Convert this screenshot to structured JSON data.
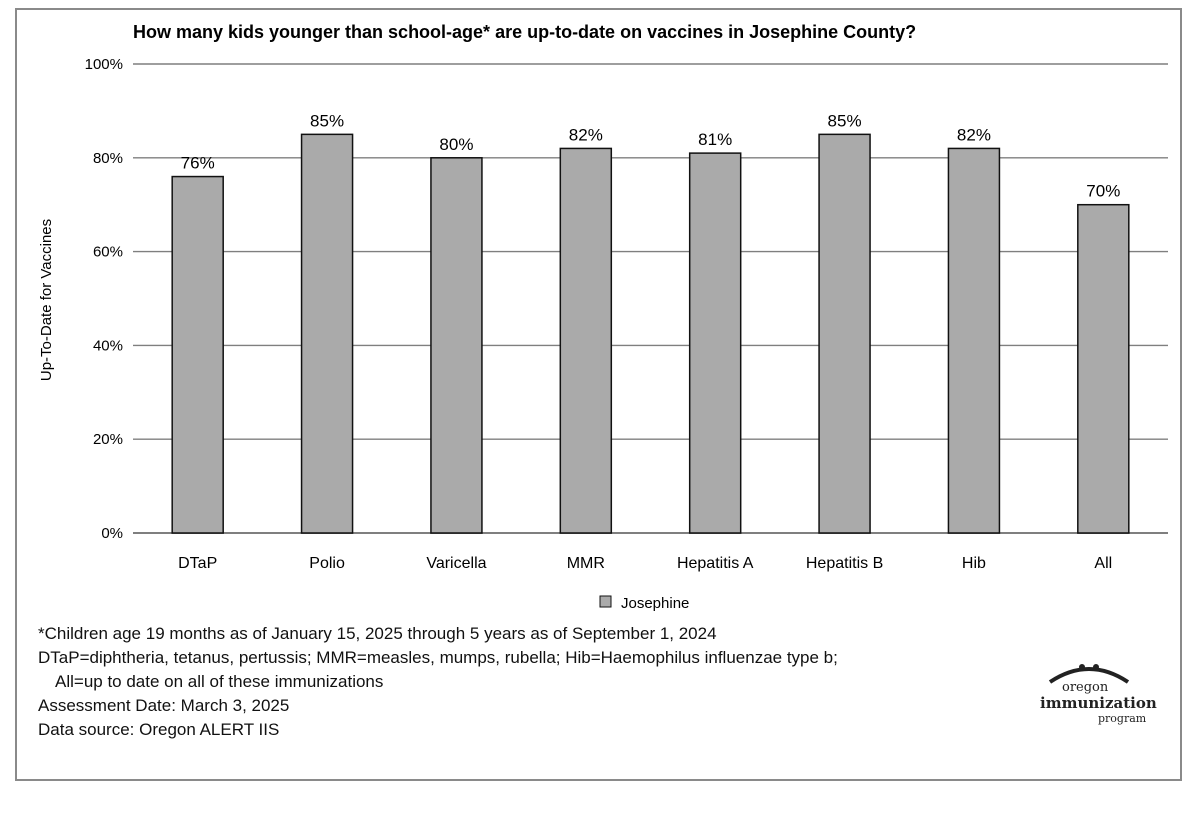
{
  "chart_data": {
    "type": "bar",
    "title": "How many kids younger than school-age* are up-to-date on vaccines in Josephine County?",
    "ylabel": "Up-To-Date for Vaccines",
    "xlabel": "",
    "categories": [
      "DTaP",
      "Polio",
      "Varicella",
      "MMR",
      "Hepatitis A",
      "Hepatitis B",
      "Hib",
      "All"
    ],
    "series": [
      {
        "name": "Josephine",
        "values": [
          76,
          85,
          80,
          82,
          81,
          85,
          82,
          70
        ]
      }
    ],
    "data_labels": [
      "76%",
      "85%",
      "80%",
      "82%",
      "81%",
      "85%",
      "82%",
      "70%"
    ],
    "ylim": [
      0,
      100
    ],
    "yticks": [
      "0%",
      "20%",
      "40%",
      "60%",
      "80%",
      "100%"
    ],
    "ytick_values": [
      0,
      20,
      40,
      60,
      80,
      100
    ],
    "grid": true,
    "legend_position": "bottom",
    "bar_color": "#aaaaaa",
    "bar_edge_color": "#111111",
    "grid_color": "#7f7f7f"
  },
  "notes": {
    "line1": "*Children age 19 months as of January 15, 2025 through 5 years as of September 1, 2024",
    "line2": "DTaP=diphtheria, tetanus, pertussis; MMR=measles, mumps, rubella; Hib=Haemophilus influenzae type b;",
    "line3": "All=up to date on all of these immunizations",
    "line4": "Assessment Date: March 3, 2025",
    "line5": "Data source: Oregon ALERT IIS"
  },
  "logo": {
    "line1": "oregon",
    "line2": "immunization",
    "line3": "program"
  }
}
